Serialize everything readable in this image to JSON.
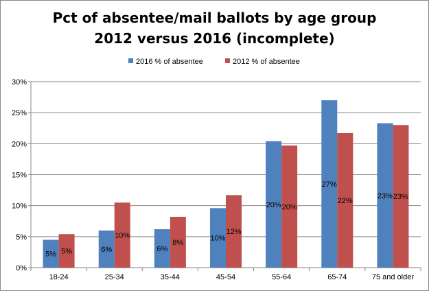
{
  "chart_data": {
    "type": "bar",
    "title_line1": "Pct of absentee/mail ballots by age group",
    "title_line2": "2012 versus 2016 (incomplete)",
    "categories": [
      "18-24",
      "25-34",
      "35-44",
      "45-54",
      "55-64",
      "65-74",
      "75 and older"
    ],
    "series": [
      {
        "name": "2016 % of absentee",
        "color": "#4F81BD",
        "values": [
          4.5,
          6.0,
          6.2,
          9.6,
          20.4,
          27.0,
          23.3
        ],
        "labels": [
          "5%",
          "6%",
          "6%",
          "10%",
          "20%",
          "27%",
          "23%"
        ]
      },
      {
        "name": "2012 % of absentee",
        "color": "#C0504D",
        "values": [
          5.4,
          10.5,
          8.2,
          11.7,
          19.7,
          21.7,
          23.0
        ],
        "labels": [
          "5%",
          "10%",
          "8%",
          "12%",
          "20%",
          "22%",
          "23%"
        ]
      }
    ],
    "yticks": [
      "0%",
      "5%",
      "10%",
      "15%",
      "20%",
      "25%",
      "30%"
    ],
    "ylim": [
      0,
      30
    ],
    "xlabel": "",
    "ylabel": "",
    "grid": true,
    "legend_position": "top"
  }
}
